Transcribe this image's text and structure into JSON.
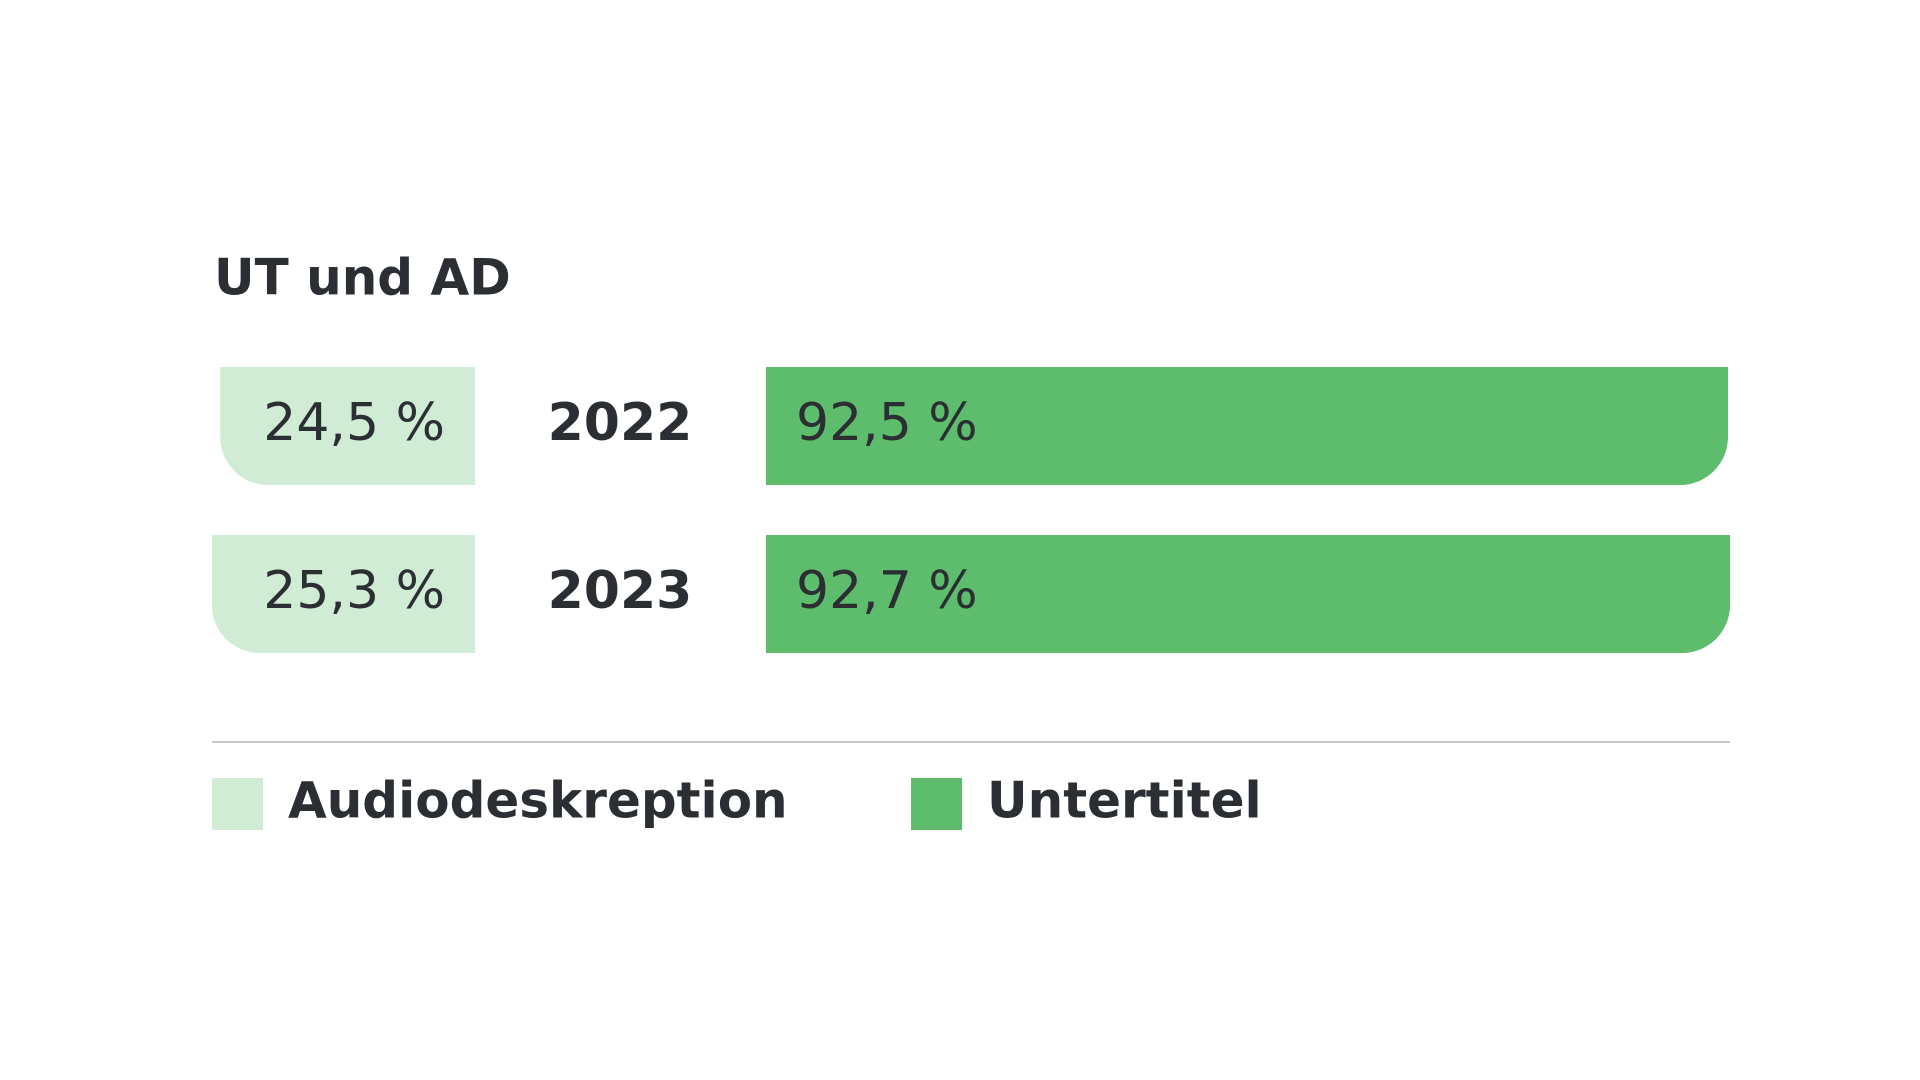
{
  "chart_data": {
    "type": "butterfly-bar",
    "title": "UT und AD",
    "categories": [
      "2022",
      "2023"
    ],
    "series": [
      {
        "name": "Audiodeskreption",
        "color": "#d0ecd5",
        "values": [
          24.5,
          25.3
        ],
        "value_labels": [
          "24,5 %",
          "25,3 %"
        ]
      },
      {
        "name": "Untertitel",
        "color": "#5dbd6d",
        "values": [
          92.5,
          92.7
        ],
        "value_labels": [
          "92,5 %",
          "92,7 %"
        ]
      }
    ]
  }
}
